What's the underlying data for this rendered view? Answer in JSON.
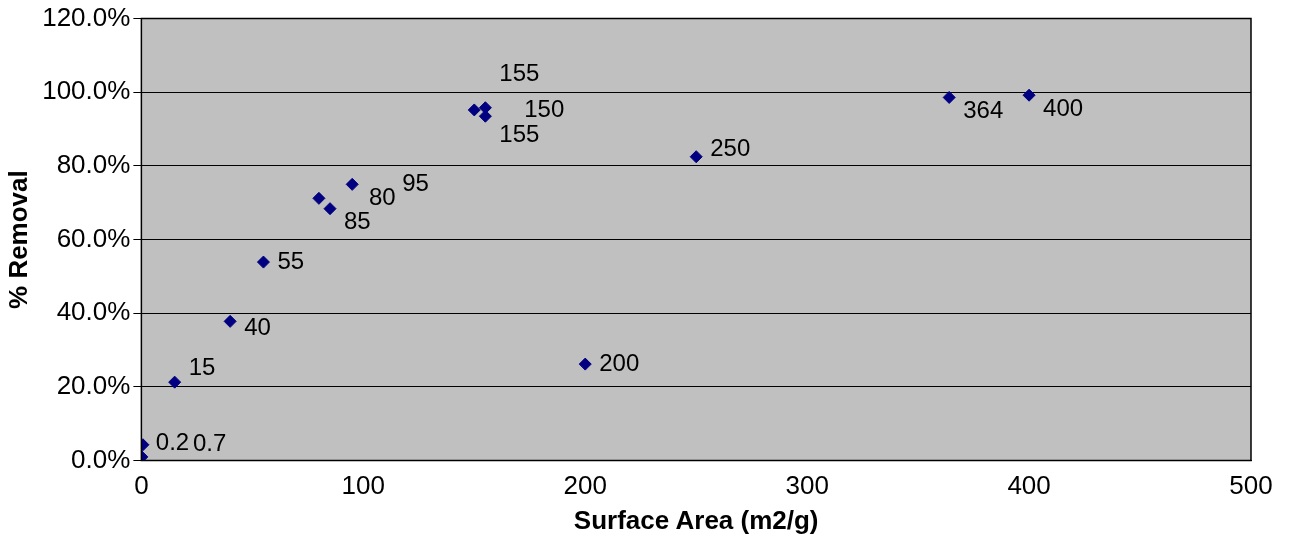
{
  "chart_data": {
    "type": "scatter",
    "xlabel": "Surface Area (m2/g)",
    "ylabel": "% Removal",
    "x": [
      0.2,
      0.7,
      15,
      40,
      55,
      80,
      85,
      95,
      150,
      155,
      155,
      200,
      250,
      364,
      400
    ],
    "series": [
      {
        "color": "#000080",
        "values": [
          1,
          4.3,
          21.3,
          37.8,
          53.9,
          71.2,
          68.4,
          75,
          95.2,
          95.8,
          93.5,
          26.2,
          82.5,
          98.6,
          99.2
        ]
      }
    ],
    "annotations": [
      {
        "text": "0.2",
        "x": 0.2,
        "y": 1
      },
      {
        "text": "0.7",
        "x": 0.7,
        "y": 4.3
      },
      {
        "text": "15",
        "x": 15,
        "y": 21.3
      },
      {
        "text": "40",
        "x": 40,
        "y": 37.8
      },
      {
        "text": "55",
        "x": 55,
        "y": 53.9
      },
      {
        "text": "80",
        "x": 80,
        "y": 71.2
      },
      {
        "text": "85",
        "x": 85,
        "y": 68.4
      },
      {
        "text": "95",
        "x": 95,
        "y": 75
      },
      {
        "text": "150",
        "x": 150,
        "y": 95.2
      },
      {
        "text": "155",
        "x": 155,
        "y": 95.8
      },
      {
        "text": "155",
        "x": 155,
        "y": 93.5
      },
      {
        "text": "200",
        "x": 200,
        "y": 26.2
      },
      {
        "text": "250",
        "x": 250,
        "y": 82.5
      },
      {
        "text": "364",
        "x": 364,
        "y": 98.6
      },
      {
        "text": "400",
        "x": 400,
        "y": 99.2
      }
    ],
    "xlim": [
      0,
      500
    ],
    "xticks": [
      0,
      100,
      200,
      300,
      400,
      500
    ],
    "ylim": [
      0,
      120
    ],
    "yticks": [
      {
        "value": 0,
        "label": "0.0%"
      },
      {
        "value": 20,
        "label": "20.0%"
      },
      {
        "value": 40,
        "label": "40.0%"
      },
      {
        "value": 60,
        "label": "60.0%"
      },
      {
        "value": 80,
        "label": "80.0%"
      },
      {
        "value": 100,
        "label": "100.0%"
      },
      {
        "value": 120,
        "label": "120.0%"
      }
    ],
    "grid": "y",
    "marker": "diamond",
    "legend": false
  }
}
